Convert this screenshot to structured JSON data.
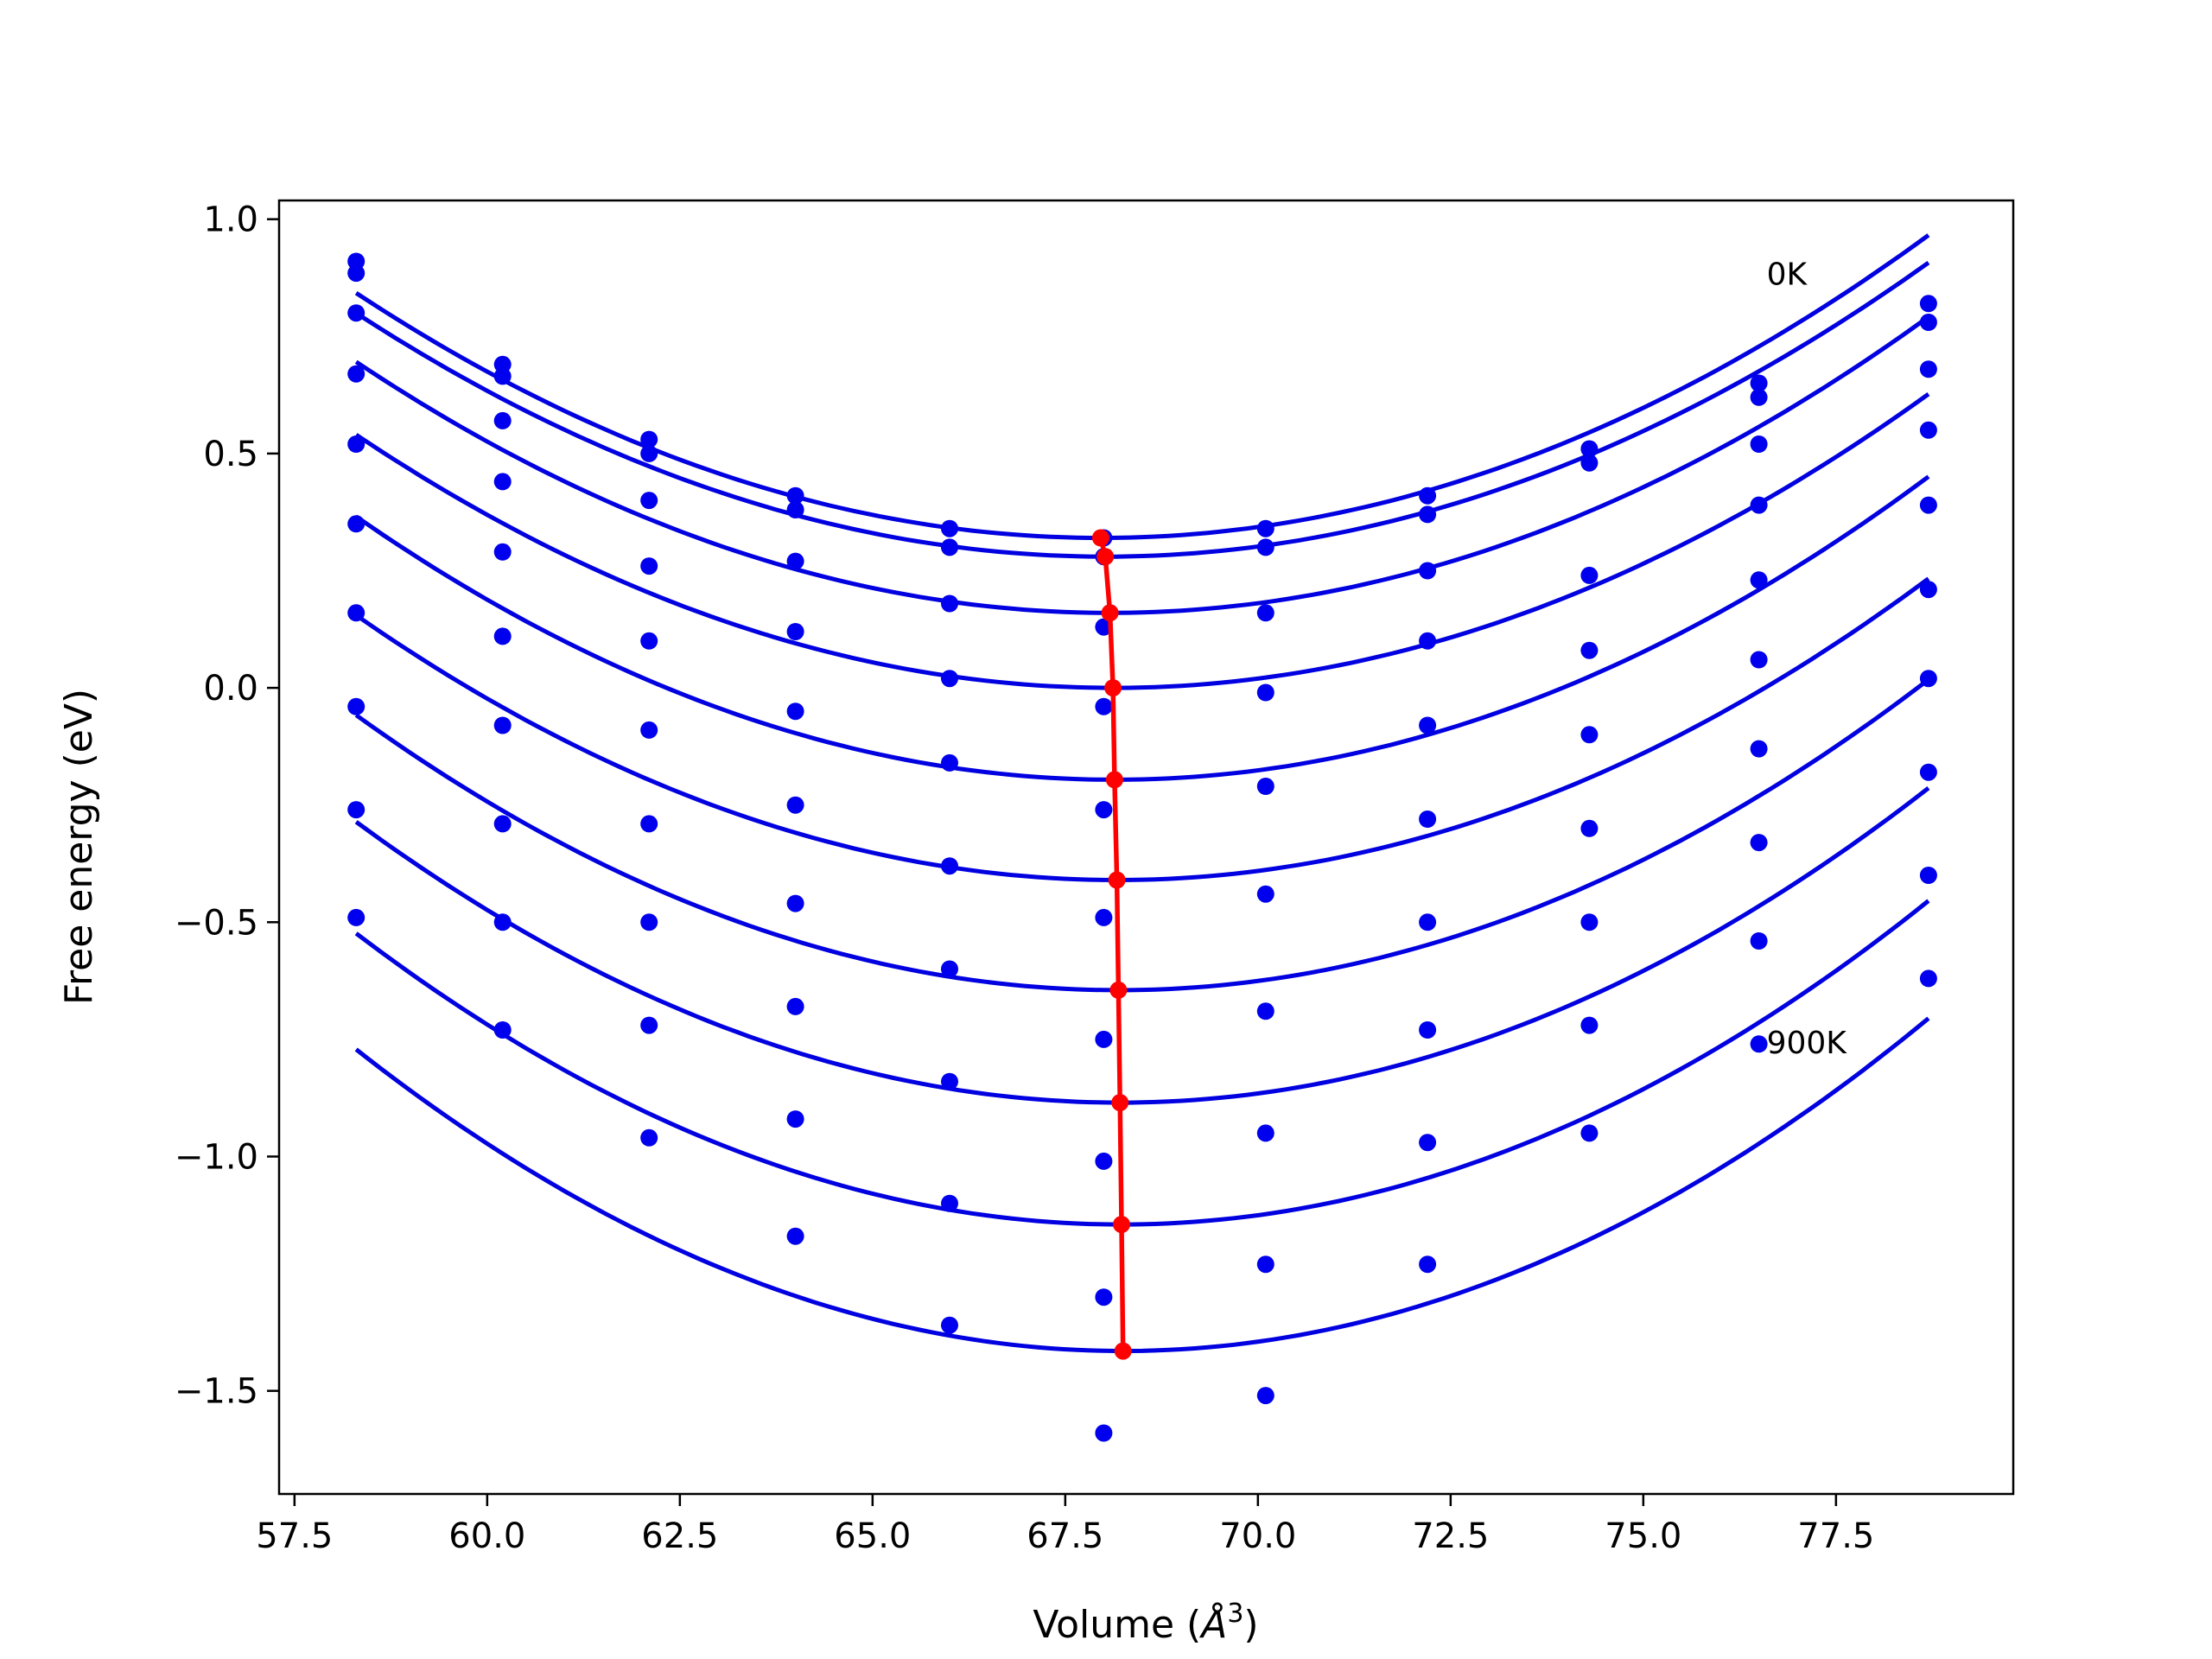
{
  "chart_data": {
    "type": "line",
    "title": "",
    "xlabel": "Volume (",
    "xlabel_symbol": "Å",
    "xlabel_exp": "3",
    "xlabel_close": ")",
    "ylabel": "Free energy (eV)",
    "xlim": [
      57.3,
      79.8
    ],
    "ylim": [
      -1.72,
      1.04
    ],
    "xticks": [
      57.5,
      60.0,
      62.5,
      65.0,
      67.5,
      70.0,
      72.5,
      75.0,
      77.5
    ],
    "xtick_labels": [
      "57.5",
      "60.0",
      "62.5",
      "65.0",
      "67.5",
      "70.0",
      "72.5",
      "75.0",
      "77.5"
    ],
    "yticks": [
      1.0,
      0.5,
      0.0,
      -0.5,
      -1.0,
      -1.5
    ],
    "ytick_labels": [
      "1.0",
      "0.5",
      "0.0",
      "−0.5",
      "−1.0",
      "−1.5"
    ],
    "grid": false,
    "annotations": [
      {
        "text": "0K",
        "x": 76.6,
        "y": 0.86
      },
      {
        "text": "900K",
        "x": 76.6,
        "y": -0.78
      }
    ],
    "volumes": [
      58.3,
      60.2,
      62.1,
      64.0,
      66.0,
      68.0,
      70.1,
      72.2,
      74.3,
      76.5,
      78.7
    ],
    "colors": {
      "fit": "#0000e0",
      "points": "#0000ee",
      "minimum": "#ff0000"
    },
    "fit_range": [
      58.3,
      78.7
    ],
    "series": [
      {
        "values": [
          0.91,
          0.69,
          0.53,
          0.41,
          0.34,
          0.32,
          0.34,
          0.41,
          0.51,
          0.65,
          0.82
        ],
        "fit": {
          "a": 0.0056,
          "v0": 67.96,
          "e0": 0.32
        }
      },
      {
        "values": [
          0.885,
          0.665,
          0.5,
          0.38,
          0.3,
          0.28,
          0.3,
          0.37,
          0.48,
          0.62,
          0.78
        ],
        "fit": {
          "a": 0.0055,
          "v0": 68.02,
          "e0": 0.28
        }
      },
      {
        "values": [
          0.8,
          0.57,
          0.4,
          0.27,
          0.18,
          0.13,
          0.16,
          0.25,
          0.24,
          0.52,
          0.68
        ],
        "fit": {
          "a": 0.0056,
          "v0": 68.08,
          "e0": 0.16
        }
      },
      {
        "values": [
          0.67,
          0.44,
          0.26,
          0.12,
          0.02,
          -0.04,
          -0.01,
          0.1,
          0.08,
          0.39,
          0.55
        ],
        "fit": {
          "a": 0.0056,
          "v0": 68.12,
          "e0": 0.0
        }
      },
      {
        "values": [
          0.52,
          0.29,
          0.1,
          -0.05,
          -0.16,
          -0.26,
          -0.21,
          -0.08,
          -0.1,
          0.23,
          0.39
        ],
        "fit": {
          "a": 0.0058,
          "v0": 68.14,
          "e0": -0.196
        }
      },
      {
        "values": [
          0.35,
          0.11,
          -0.09,
          -0.25,
          -0.38,
          -0.49,
          -0.44,
          -0.28,
          -0.3,
          0.06,
          0.21
        ],
        "fit": {
          "a": 0.0058,
          "v0": 68.17,
          "e0": -0.41
        }
      },
      {
        "values": [
          0.16,
          -0.08,
          -0.29,
          -0.46,
          -0.6,
          -0.75,
          -0.69,
          -0.5,
          -0.5,
          -0.13,
          0.02
        ],
        "fit": {
          "a": 0.006,
          "v0": 68.19,
          "e0": -0.645
        }
      },
      {
        "values": [
          -0.04,
          -0.29,
          -0.5,
          -0.68,
          -0.84,
          -1.01,
          -0.95,
          -0.73,
          -0.72,
          -0.33,
          -0.18
        ],
        "fit": {
          "a": 0.0061,
          "v0": 68.21,
          "e0": -0.885
        }
      },
      {
        "values": [
          -0.26,
          -0.5,
          -0.72,
          -0.92,
          -1.1,
          -1.3,
          -1.23,
          -0.97,
          -0.95,
          -0.54,
          -0.4
        ],
        "fit": {
          "a": 0.0063,
          "v0": 68.23,
          "e0": -1.145
        }
      },
      {
        "values": [
          -0.49,
          -0.73,
          -0.96,
          -1.17,
          -1.36,
          -1.59,
          -1.51,
          -1.23,
          null,
          -0.76,
          -0.62
        ],
        "fit": {
          "a": 0.0065,
          "v0": 68.25,
          "e0": -1.415
        }
      }
    ],
    "minimum_line": {
      "x": [
        67.96,
        68.02,
        68.08,
        68.12,
        68.14,
        68.17,
        68.19,
        68.21,
        68.23,
        68.25
      ],
      "y": [
        0.32,
        0.28,
        0.16,
        0.0,
        -0.196,
        -0.41,
        -0.645,
        -0.885,
        -1.145,
        -1.415
      ]
    }
  }
}
